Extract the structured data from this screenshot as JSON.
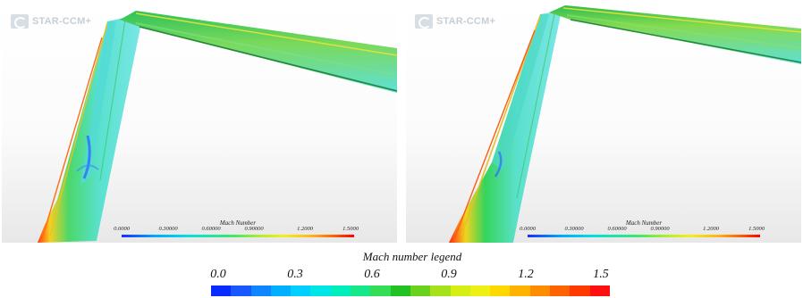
{
  "panels": [
    {
      "logo_text": "STAR-CCM+",
      "legend_title": "Mach Number",
      "legend_ticks": [
        "0.0000",
        "0.30000",
        "0.60000",
        "0.90000",
        "1.2000",
        "1.5000"
      ]
    },
    {
      "logo_text": "STAR-CCM+",
      "legend_title": "Mach Number",
      "legend_ticks": [
        "0.0000",
        "0.30000",
        "0.60000",
        "0.90000",
        "1.2000",
        "1.5000"
      ]
    }
  ],
  "legend": {
    "title": "Mach number legend",
    "ticks": [
      "0.0",
      "0.3",
      "0.6",
      "0.9",
      "1.2",
      "1.5"
    ],
    "range": [
      0.0,
      1.5
    ],
    "colors": [
      "#0a2bff",
      "#1957ff",
      "#0f86ff",
      "#00b0ff",
      "#00cfff",
      "#00e6e6",
      "#00eebb",
      "#14e889",
      "#33dd55",
      "#22c222",
      "#6ad21e",
      "#a6e21a",
      "#d5ef14",
      "#eef015",
      "#ffd800",
      "#ffb300",
      "#ff8c00",
      "#ff6200",
      "#ff3a00",
      "#ff1010"
    ]
  },
  "colors": {
    "flow_bg": "#63e3dd",
    "flow_green": "#47d66d",
    "flow_yellow": "#d9e52a",
    "flow_red": "#ff3a10",
    "flow_blue": "#2a6bff"
  }
}
